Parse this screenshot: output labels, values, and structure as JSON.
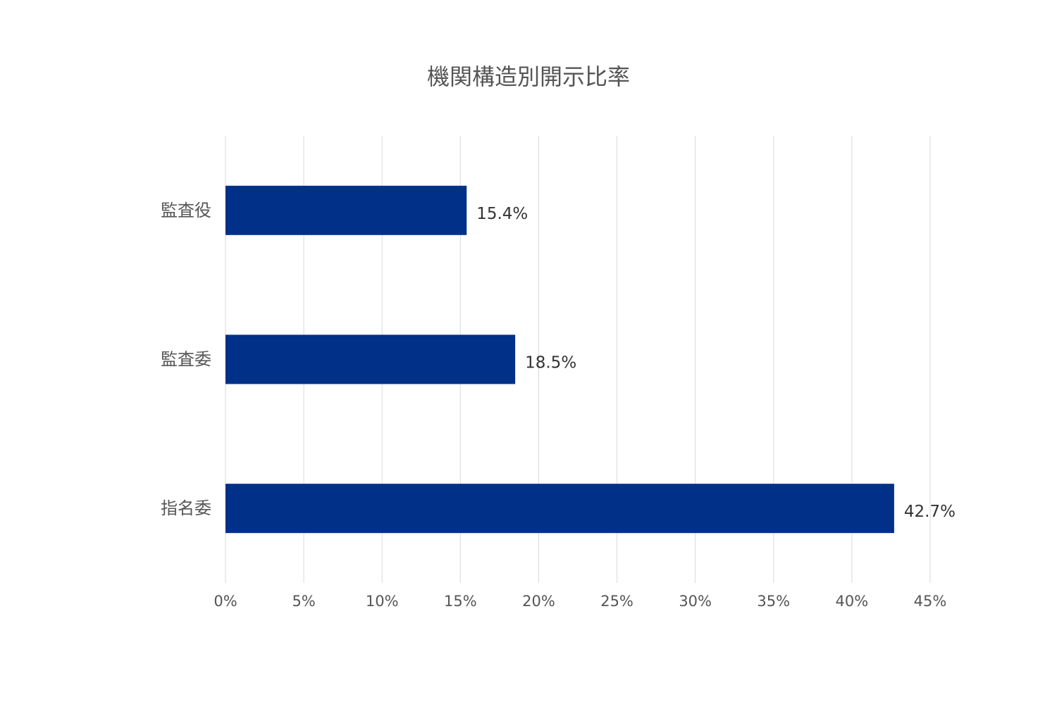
{
  "chart_data": {
    "type": "bar",
    "orientation": "horizontal",
    "title": "機関構造別開示比率",
    "categories": [
      "監査役",
      "監査委",
      "指名委"
    ],
    "values": [
      15.4,
      18.5,
      42.7
    ],
    "data_labels": [
      "15.4%",
      "18.5%",
      "42.7%"
    ],
    "xlabel": "",
    "ylabel": "",
    "xlim": [
      0,
      45
    ],
    "x_ticks": [
      "0%",
      "5%",
      "10%",
      "15%",
      "20%",
      "25%",
      "30%",
      "35%",
      "40%",
      "45%"
    ],
    "grid": "vertical",
    "legend": "none",
    "bar_color": "#003087"
  }
}
